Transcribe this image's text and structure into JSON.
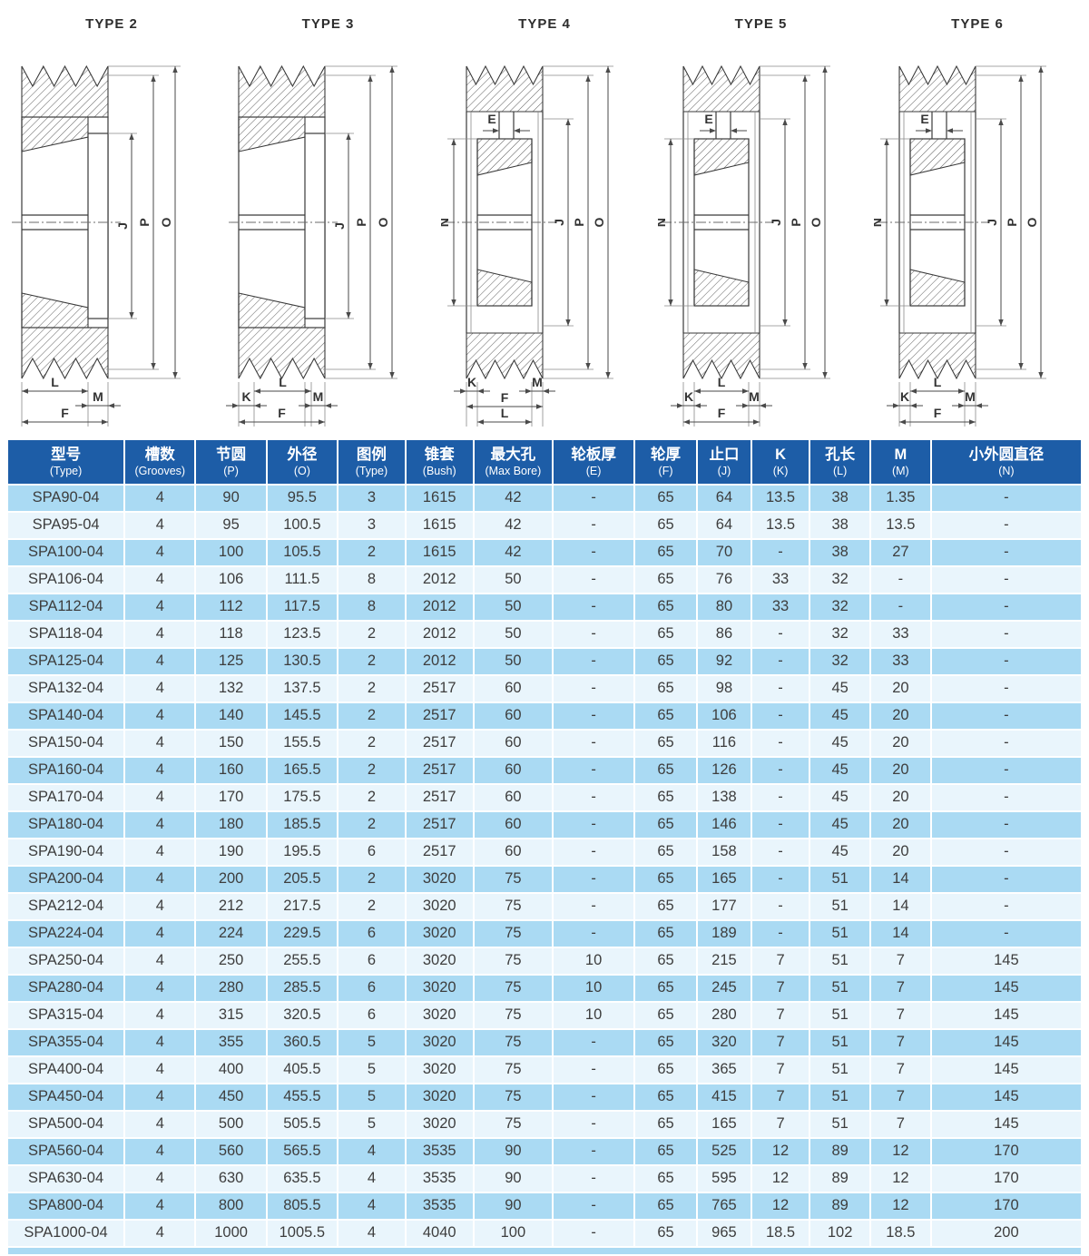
{
  "colors": {
    "header_bg": "#1d5da7",
    "row_blue": "#aadaf3",
    "row_light": "#e9f5fc",
    "cell_text": "#3d3d3d",
    "line": "#3a3a3a"
  },
  "drawings": [
    {
      "title": "TYPE 2",
      "variant": "A2",
      "dims": {
        "right": [
          "J",
          "P",
          "O"
        ],
        "bottom": [
          "L",
          "M",
          "F"
        ]
      }
    },
    {
      "title": "TYPE 3",
      "variant": "A3",
      "dims": {
        "right": [
          "J",
          "P",
          "O"
        ],
        "bottom": [
          "L",
          "K",
          "M",
          "F"
        ]
      }
    },
    {
      "title": "TYPE 4",
      "variant": "B4",
      "dims": {
        "top": "E",
        "left": "N",
        "right": [
          "J",
          "P",
          "O"
        ],
        "bottom": [
          "K",
          "M",
          "F",
          "L"
        ]
      }
    },
    {
      "title": "TYPE 5",
      "variant": "B5",
      "dims": {
        "top": "E",
        "left": "N",
        "right": [
          "J",
          "P",
          "O"
        ],
        "bottom": [
          "L",
          "K",
          "M",
          "F"
        ]
      }
    },
    {
      "title": "TYPE 6",
      "variant": "B6",
      "dims": {
        "top": "E",
        "left": "N",
        "right": [
          "J",
          "P",
          "O"
        ],
        "bottom": [
          "L",
          "K",
          "M",
          "F"
        ]
      }
    }
  ],
  "table": {
    "headers": [
      {
        "zh": "型号",
        "en": "(Type)"
      },
      {
        "zh": "槽数",
        "en": "(Grooves)"
      },
      {
        "zh": "节圆",
        "en": "(P)"
      },
      {
        "zh": "外径",
        "en": "(O)"
      },
      {
        "zh": "图例",
        "en": "(Type)"
      },
      {
        "zh": "锥套",
        "en": "(Bush)"
      },
      {
        "zh": "最大孔",
        "en": "(Max Bore)"
      },
      {
        "zh": "轮板厚",
        "en": "(E)"
      },
      {
        "zh": "轮厚",
        "en": "(F)"
      },
      {
        "zh": "止口",
        "en": "(J)"
      },
      {
        "zh": "K",
        "en": "(K)"
      },
      {
        "zh": "孔长",
        "en": "(L)"
      },
      {
        "zh": "M",
        "en": "(M)"
      },
      {
        "zh": "小外圆直径",
        "en": "(N)"
      }
    ],
    "rows": [
      [
        "SPA90-04",
        "4",
        "90",
        "95.5",
        "3",
        "1615",
        "42",
        "-",
        "65",
        "64",
        "13.5",
        "38",
        "1.35",
        "-"
      ],
      [
        "SPA95-04",
        "4",
        "95",
        "100.5",
        "3",
        "1615",
        "42",
        "-",
        "65",
        "64",
        "13.5",
        "38",
        "13.5",
        "-"
      ],
      [
        "SPA100-04",
        "4",
        "100",
        "105.5",
        "2",
        "1615",
        "42",
        "-",
        "65",
        "70",
        "-",
        "38",
        "27",
        "-"
      ],
      [
        "SPA106-04",
        "4",
        "106",
        "111.5",
        "8",
        "2012",
        "50",
        "-",
        "65",
        "76",
        "33",
        "32",
        "-",
        "-"
      ],
      [
        "SPA112-04",
        "4",
        "112",
        "117.5",
        "8",
        "2012",
        "50",
        "-",
        "65",
        "80",
        "33",
        "32",
        "-",
        "-"
      ],
      [
        "SPA118-04",
        "4",
        "118",
        "123.5",
        "2",
        "2012",
        "50",
        "-",
        "65",
        "86",
        "-",
        "32",
        "33",
        "-"
      ],
      [
        "SPA125-04",
        "4",
        "125",
        "130.5",
        "2",
        "2012",
        "50",
        "-",
        "65",
        "92",
        "-",
        "32",
        "33",
        "-"
      ],
      [
        "SPA132-04",
        "4",
        "132",
        "137.5",
        "2",
        "2517",
        "60",
        "-",
        "65",
        "98",
        "-",
        "45",
        "20",
        "-"
      ],
      [
        "SPA140-04",
        "4",
        "140",
        "145.5",
        "2",
        "2517",
        "60",
        "-",
        "65",
        "106",
        "-",
        "45",
        "20",
        "-"
      ],
      [
        "SPA150-04",
        "4",
        "150",
        "155.5",
        "2",
        "2517",
        "60",
        "-",
        "65",
        "116",
        "-",
        "45",
        "20",
        "-"
      ],
      [
        "SPA160-04",
        "4",
        "160",
        "165.5",
        "2",
        "2517",
        "60",
        "-",
        "65",
        "126",
        "-",
        "45",
        "20",
        "-"
      ],
      [
        "SPA170-04",
        "4",
        "170",
        "175.5",
        "2",
        "2517",
        "60",
        "-",
        "65",
        "138",
        "-",
        "45",
        "20",
        "-"
      ],
      [
        "SPA180-04",
        "4",
        "180",
        "185.5",
        "2",
        "2517",
        "60",
        "-",
        "65",
        "146",
        "-",
        "45",
        "20",
        "-"
      ],
      [
        "SPA190-04",
        "4",
        "190",
        "195.5",
        "6",
        "2517",
        "60",
        "-",
        "65",
        "158",
        "-",
        "45",
        "20",
        "-"
      ],
      [
        "SPA200-04",
        "4",
        "200",
        "205.5",
        "2",
        "3020",
        "75",
        "-",
        "65",
        "165",
        "-",
        "51",
        "14",
        "-"
      ],
      [
        "SPA212-04",
        "4",
        "212",
        "217.5",
        "2",
        "3020",
        "75",
        "-",
        "65",
        "177",
        "-",
        "51",
        "14",
        "-"
      ],
      [
        "SPA224-04",
        "4",
        "224",
        "229.5",
        "6",
        "3020",
        "75",
        "-",
        "65",
        "189",
        "-",
        "51",
        "14",
        "-"
      ],
      [
        "SPA250-04",
        "4",
        "250",
        "255.5",
        "6",
        "3020",
        "75",
        "10",
        "65",
        "215",
        "7",
        "51",
        "7",
        "145"
      ],
      [
        "SPA280-04",
        "4",
        "280",
        "285.5",
        "6",
        "3020",
        "75",
        "10",
        "65",
        "245",
        "7",
        "51",
        "7",
        "145"
      ],
      [
        "SPA315-04",
        "4",
        "315",
        "320.5",
        "6",
        "3020",
        "75",
        "10",
        "65",
        "280",
        "7",
        "51",
        "7",
        "145"
      ],
      [
        "SPA355-04",
        "4",
        "355",
        "360.5",
        "5",
        "3020",
        "75",
        "-",
        "65",
        "320",
        "7",
        "51",
        "7",
        "145"
      ],
      [
        "SPA400-04",
        "4",
        "400",
        "405.5",
        "5",
        "3020",
        "75",
        "-",
        "65",
        "365",
        "7",
        "51",
        "7",
        "145"
      ],
      [
        "SPA450-04",
        "4",
        "450",
        "455.5",
        "5",
        "3020",
        "75",
        "-",
        "65",
        "415",
        "7",
        "51",
        "7",
        "145"
      ],
      [
        "SPA500-04",
        "4",
        "500",
        "505.5",
        "5",
        "3020",
        "75",
        "-",
        "65",
        "165",
        "7",
        "51",
        "7",
        "145"
      ],
      [
        "SPA560-04",
        "4",
        "560",
        "565.5",
        "4",
        "3535",
        "90",
        "-",
        "65",
        "525",
        "12",
        "89",
        "12",
        "170"
      ],
      [
        "SPA630-04",
        "4",
        "630",
        "635.5",
        "4",
        "3535",
        "90",
        "-",
        "65",
        "595",
        "12",
        "89",
        "12",
        "170"
      ],
      [
        "SPA800-04",
        "4",
        "800",
        "805.5",
        "4",
        "3535",
        "90",
        "-",
        "65",
        "765",
        "12",
        "89",
        "12",
        "170"
      ],
      [
        "SPA1000-04",
        "4",
        "1000",
        "1005.5",
        "4",
        "4040",
        "100",
        "-",
        "65",
        "965",
        "18.5",
        "102",
        "18.5",
        "200"
      ]
    ]
  }
}
